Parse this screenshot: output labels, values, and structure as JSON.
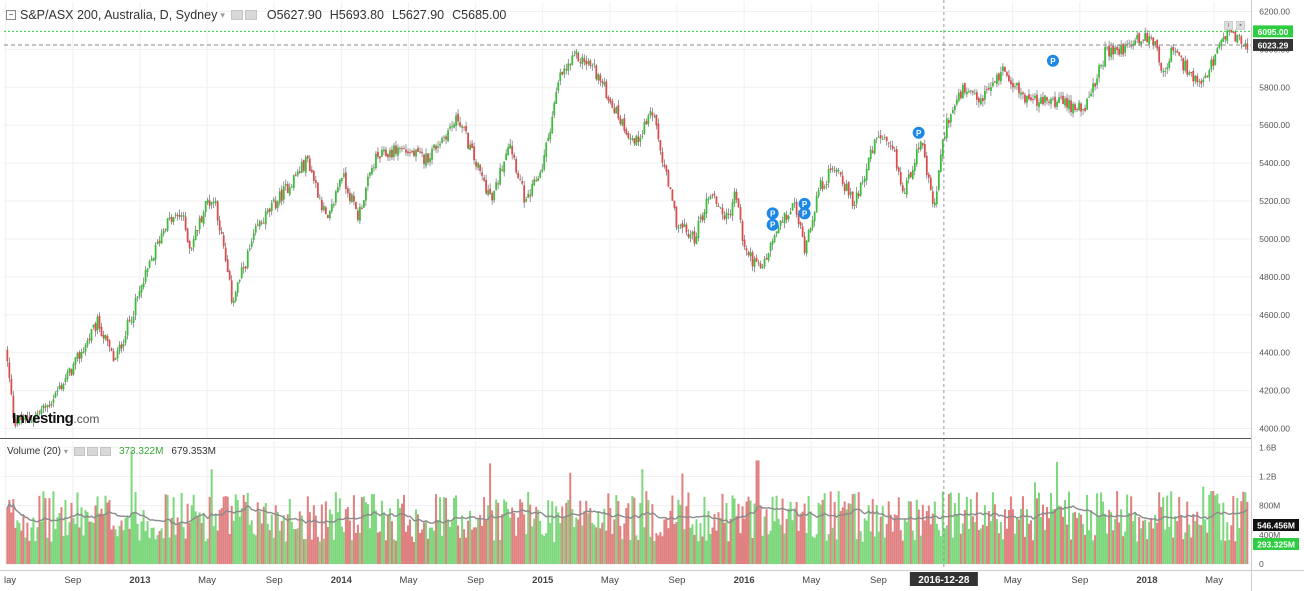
{
  "header": {
    "symbol": "S&P/ASX 200, Australia, D, Sydney",
    "open": "O5627.90",
    "high": "H5693.80",
    "low": "L5627.90",
    "close": "C5685.00"
  },
  "volume_header": {
    "label": "Volume (20)",
    "value1": "373.322M",
    "value2": "679.353M"
  },
  "logo": {
    "main": "Investing",
    "suffix": ".com"
  },
  "crosshair": {
    "date_label": "2016-12-28"
  },
  "colors": {
    "up": "#3dbd3d",
    "down": "#d94f4f",
    "volume_up": "#7dd87d",
    "volume_down": "#e08080",
    "volume_ma": "#8a8a8a",
    "last_price": "#2ecc40",
    "crosshair_price": "#333333",
    "badge": "#1e88e5"
  },
  "chart_data": [
    {
      "type": "candlestick",
      "title": "S&P/ASX 200, Australia, D, Sydney",
      "ylim": [
        3950,
        6250
      ],
      "y_ticks": [
        "6200.00",
        "6000.00",
        "5800.00",
        "5600.00",
        "5400.00",
        "5200.00",
        "5000.00",
        "4800.00",
        "4600.00",
        "4400.00",
        "4200.00",
        "4000.00"
      ],
      "x_ticks": [
        "lay",
        "Sep",
        "2013",
        "May",
        "Sep",
        "2014",
        "May",
        "Sep",
        "2015",
        "May",
        "Sep",
        "2016",
        "May",
        "Sep",
        "2016-12-28",
        "May",
        "Sep",
        "2018",
        "May"
      ],
      "x_tick_months": [
        0,
        4,
        8,
        12,
        16,
        20,
        24,
        28,
        32,
        36,
        40,
        44,
        48,
        52,
        55.9,
        60,
        64,
        68,
        72
      ],
      "x_range_months": [
        -0.1,
        74.2
      ],
      "price_path": [
        {
          "m": 0,
          "v": 4420
        },
        {
          "m": 0.5,
          "v": 4040
        },
        {
          "m": 1.5,
          "v": 4050
        },
        {
          "m": 2.5,
          "v": 4120
        },
        {
          "m": 4,
          "v": 4320
        },
        {
          "m": 5.5,
          "v": 4560
        },
        {
          "m": 6.5,
          "v": 4350
        },
        {
          "m": 8,
          "v": 4720
        },
        {
          "m": 9.5,
          "v": 5080
        },
        {
          "m": 10.5,
          "v": 5130
        },
        {
          "m": 11,
          "v": 4950
        },
        {
          "m": 12,
          "v": 5200
        },
        {
          "m": 12.5,
          "v": 5200
        },
        {
          "m": 13.5,
          "v": 4670
        },
        {
          "m": 15,
          "v": 5060
        },
        {
          "m": 17,
          "v": 5300
        },
        {
          "m": 18,
          "v": 5420
        },
        {
          "m": 19.2,
          "v": 5080
        },
        {
          "m": 20,
          "v": 5350
        },
        {
          "m": 21,
          "v": 5120
        },
        {
          "m": 22,
          "v": 5420
        },
        {
          "m": 23.5,
          "v": 5480
        },
        {
          "m": 25,
          "v": 5420
        },
        {
          "m": 27,
          "v": 5640
        },
        {
          "m": 28,
          "v": 5400
        },
        {
          "m": 29,
          "v": 5200
        },
        {
          "m": 30,
          "v": 5530
        },
        {
          "m": 31,
          "v": 5180
        },
        {
          "m": 32,
          "v": 5390
        },
        {
          "m": 33,
          "v": 5850
        },
        {
          "m": 34,
          "v": 5960
        },
        {
          "m": 35,
          "v": 5910
        },
        {
          "m": 36.5,
          "v": 5650
        },
        {
          "m": 37.5,
          "v": 5500
        },
        {
          "m": 38.5,
          "v": 5680
        },
        {
          "m": 39.3,
          "v": 5350
        },
        {
          "m": 40,
          "v": 5080
        },
        {
          "m": 41,
          "v": 5000
        },
        {
          "m": 42,
          "v": 5250
        },
        {
          "m": 43,
          "v": 5100
        },
        {
          "m": 43.5,
          "v": 5250
        },
        {
          "m": 44,
          "v": 4950
        },
        {
          "m": 45,
          "v": 4830
        },
        {
          "m": 46,
          "v": 5050
        },
        {
          "m": 47,
          "v": 5180
        },
        {
          "m": 47.6,
          "v": 4960
        },
        {
          "m": 48.5,
          "v": 5270
        },
        {
          "m": 49.5,
          "v": 5390
        },
        {
          "m": 50.5,
          "v": 5180
        },
        {
          "m": 52,
          "v": 5550
        },
        {
          "m": 53,
          "v": 5430
        },
        {
          "m": 53.5,
          "v": 5230
        },
        {
          "m": 54.5,
          "v": 5530
        },
        {
          "m": 55.3,
          "v": 5150
        },
        {
          "m": 56,
          "v": 5600
        },
        {
          "m": 57,
          "v": 5780
        },
        {
          "m": 58,
          "v": 5720
        },
        {
          "m": 59.5,
          "v": 5900
        },
        {
          "m": 60.5,
          "v": 5760
        },
        {
          "m": 61.5,
          "v": 5720
        },
        {
          "m": 62.5,
          "v": 5730
        },
        {
          "m": 63.5,
          "v": 5700
        },
        {
          "m": 64.5,
          "v": 5710
        },
        {
          "m": 65.5,
          "v": 5980
        },
        {
          "m": 66.5,
          "v": 6000
        },
        {
          "m": 67.5,
          "v": 6060
        },
        {
          "m": 68.5,
          "v": 6050
        },
        {
          "m": 69,
          "v": 5850
        },
        {
          "m": 69.5,
          "v": 6000
        },
        {
          "m": 70.5,
          "v": 5880
        },
        {
          "m": 71.2,
          "v": 5790
        },
        {
          "m": 72,
          "v": 5950
        },
        {
          "m": 73,
          "v": 6110
        },
        {
          "m": 73.5,
          "v": 6040
        },
        {
          "m": 74,
          "v": 6020
        }
      ],
      "last_price": "6095.00",
      "crosshair_price": "6023.29",
      "annotations": [
        {
          "label": "P",
          "m": 45.7,
          "v": 5135
        },
        {
          "label": "P",
          "m": 45.7,
          "v": 5075
        },
        {
          "label": "P",
          "m": 47.6,
          "v": 5185
        },
        {
          "label": "P",
          "m": 47.6,
          "v": 5135
        },
        {
          "label": "P",
          "m": 54.4,
          "v": 5560
        },
        {
          "label": "P",
          "m": 62.4,
          "v": 5940
        }
      ]
    },
    {
      "type": "bar",
      "title": "Volume (20)",
      "ylim": [
        0,
        1700000000
      ],
      "y_ticks": [
        "1.6B",
        "1.2B",
        "800M",
        "400M",
        "0"
      ],
      "y_tick_values": [
        1600000000,
        1200000000,
        800000000,
        400000000,
        0
      ],
      "volume_ma_level": 650000000,
      "volume_range": [
        300000000,
        1000000000
      ],
      "volume_spikes": [
        {
          "m": 7.5,
          "v": 1560000000
        },
        {
          "m": 12.3,
          "v": 1300000000
        },
        {
          "m": 28.9,
          "v": 1380000000
        },
        {
          "m": 33.6,
          "v": 1250000000
        },
        {
          "m": 37.9,
          "v": 1300000000
        },
        {
          "m": 40.3,
          "v": 1240000000
        },
        {
          "m": 44.8,
          "v": 1420000000
        },
        {
          "m": 61.3,
          "v": 1120000000
        },
        {
          "m": 62.6,
          "v": 1400000000
        },
        {
          "m": 71.4,
          "v": 1060000000
        },
        {
          "m": 71.9,
          "v": 1000000000
        }
      ],
      "last_volume": "546.456M",
      "volume_ma_value": "293.325M"
    }
  ]
}
